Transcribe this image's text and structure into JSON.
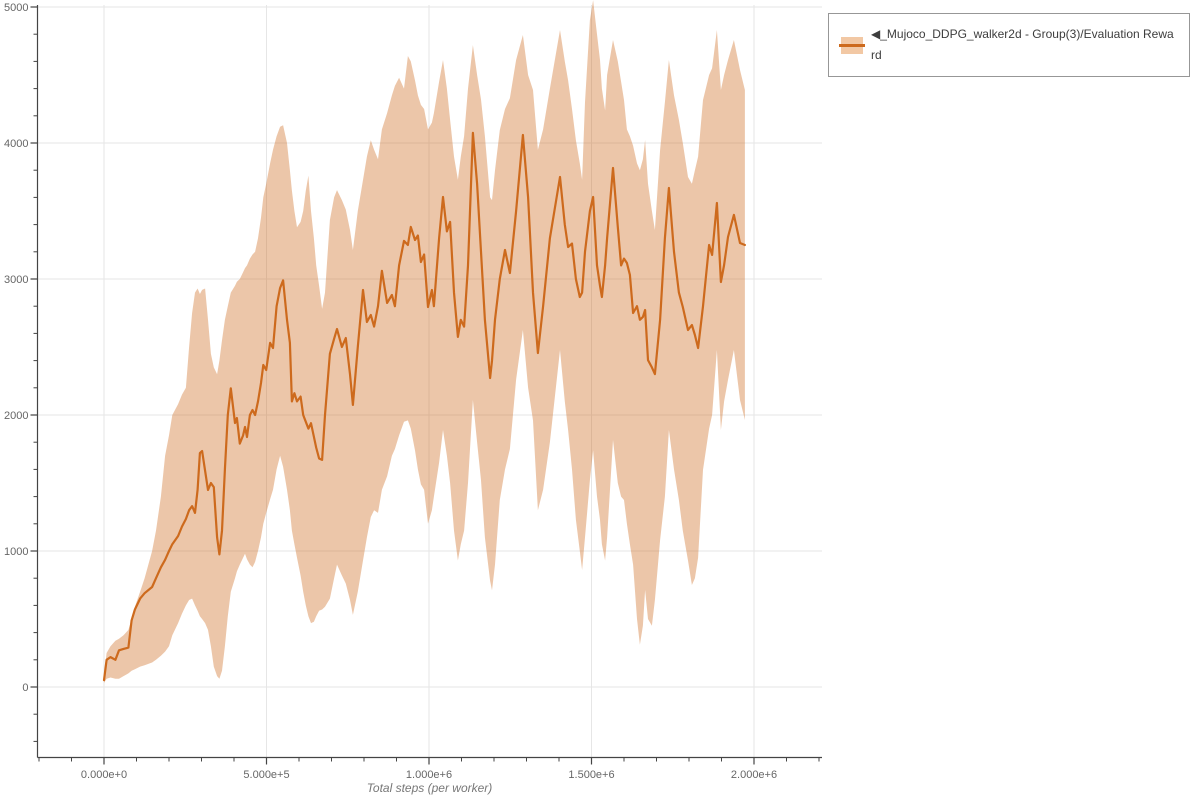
{
  "legend": {
    "label": "◀_Mujoco_DDPG_walker2d - Group(3)/Evaluation Reward"
  },
  "colors": {
    "line": "#cd6a1d",
    "band": "#cd6a1d",
    "band_opacity": 0.38,
    "band_solid": "#f2c8a4",
    "grid": "#e6e6e6",
    "axis": "#444444",
    "tick_label": "#666666",
    "axis_title": "#777777",
    "legend_border": "#979797",
    "legend_text": "#3d3d3d"
  },
  "chart_data": {
    "type": "line",
    "title": "",
    "xlabel": "Total steps (per worker)",
    "ylabel": "",
    "grid": true,
    "legend_position": "top-right-outside",
    "x_axis_range": [
      -206000,
      2209000
    ],
    "y_axis_range": [
      -515,
      5015
    ],
    "x_ticks": [
      {
        "value": 0,
        "label": "0.000e+0"
      },
      {
        "value": 500000,
        "label": "5.000e+5"
      },
      {
        "value": 1000000,
        "label": "1.000e+6"
      },
      {
        "value": 1500000,
        "label": "1.500e+6"
      },
      {
        "value": 2000000,
        "label": "2.000e+6"
      }
    ],
    "y_ticks": [
      {
        "value": 0,
        "label": "0"
      },
      {
        "value": 1000,
        "label": "1000"
      },
      {
        "value": 2000,
        "label": "2000"
      },
      {
        "value": 3000,
        "label": "3000"
      },
      {
        "value": 4000,
        "label": "4000"
      },
      {
        "value": 5000,
        "label": "5000"
      }
    ],
    "x_minor_step": 100000,
    "y_minor_step": 200,
    "series": [
      {
        "name": "_Mujoco_DDPG_walker2d - Group(3)/Evaluation Reward",
        "points_format": [
          "step",
          "mean_reward",
          "band_low",
          "band_high"
        ],
        "points": [
          [
            0,
            50,
            30,
            90
          ],
          [
            8000,
            200,
            60,
            250
          ],
          [
            20000,
            220,
            70,
            300
          ],
          [
            35000,
            200,
            60,
            340
          ],
          [
            46000,
            270,
            60,
            355
          ],
          [
            60000,
            280,
            80,
            380
          ],
          [
            75000,
            290,
            100,
            420
          ],
          [
            85000,
            490,
            120,
            500
          ],
          [
            95000,
            570,
            130,
            590
          ],
          [
            111000,
            650,
            150,
            700
          ],
          [
            125000,
            690,
            160,
            800
          ],
          [
            148000,
            735,
            180,
            1000
          ],
          [
            160000,
            800,
            200,
            1150
          ],
          [
            175000,
            880,
            230,
            1400
          ],
          [
            188000,
            935,
            260,
            1700
          ],
          [
            200000,
            1000,
            300,
            1850
          ],
          [
            210000,
            1050,
            380,
            2000
          ],
          [
            228000,
            1110,
            470,
            2080
          ],
          [
            240000,
            1180,
            540,
            2150
          ],
          [
            252000,
            1235,
            600,
            2200
          ],
          [
            262000,
            1300,
            640,
            2500
          ],
          [
            271000,
            1330,
            650,
            2750
          ],
          [
            280000,
            1280,
            600,
            2900
          ],
          [
            288000,
            1450,
            560,
            2930
          ],
          [
            295000,
            1720,
            520,
            2890
          ],
          [
            302000,
            1735,
            500,
            2920
          ],
          [
            311000,
            1590,
            470,
            2930
          ],
          [
            320000,
            1449,
            420,
            2700
          ],
          [
            329000,
            1500,
            300,
            2450
          ],
          [
            338000,
            1470,
            150,
            2350
          ],
          [
            348000,
            1100,
            80,
            2300
          ],
          [
            355000,
            975,
            60,
            2400
          ],
          [
            363000,
            1150,
            120,
            2550
          ],
          [
            372000,
            1600,
            300,
            2700
          ],
          [
            381000,
            2000,
            520,
            2800
          ],
          [
            390000,
            2196,
            700,
            2900
          ],
          [
            403000,
            1941,
            800,
            2950
          ],
          [
            409000,
            1978,
            850,
            2980
          ],
          [
            418000,
            1790,
            900,
            3000
          ],
          [
            428000,
            1850,
            950,
            3050
          ],
          [
            434000,
            1912,
            980,
            3080
          ],
          [
            440000,
            1838,
            940,
            3100
          ],
          [
            449000,
            2000,
            900,
            3150
          ],
          [
            457000,
            2037,
            880,
            3180
          ],
          [
            465000,
            2000,
            920,
            3200
          ],
          [
            474000,
            2100,
            1000,
            3300
          ],
          [
            483000,
            2235,
            1100,
            3450
          ],
          [
            490000,
            2368,
            1200,
            3600
          ],
          [
            499000,
            2331,
            1280,
            3700
          ],
          [
            511000,
            2530,
            1380,
            3850
          ],
          [
            520000,
            2493,
            1450,
            3950
          ],
          [
            531000,
            2800,
            1600,
            4050
          ],
          [
            542000,
            2934,
            1700,
            4120
          ],
          [
            551000,
            2990,
            1620,
            4130
          ],
          [
            563000,
            2700,
            1450,
            4000
          ],
          [
            572000,
            2530,
            1300,
            3800
          ],
          [
            578000,
            2100,
            1150,
            3650
          ],
          [
            586000,
            2160,
            1050,
            3500
          ],
          [
            594000,
            2100,
            950,
            3380
          ],
          [
            605000,
            2135,
            820,
            3420
          ],
          [
            613000,
            2000,
            700,
            3500
          ],
          [
            621000,
            1950,
            600,
            3650
          ],
          [
            629000,
            1900,
            520,
            3760
          ],
          [
            637000,
            1940,
            470,
            3500
          ],
          [
            646000,
            1840,
            480,
            3300
          ],
          [
            653000,
            1760,
            520,
            3100
          ],
          [
            662000,
            1680,
            560,
            2950
          ],
          [
            671000,
            1670,
            570,
            2780
          ],
          [
            680000,
            2000,
            590,
            2900
          ],
          [
            695000,
            2450,
            650,
            3434
          ],
          [
            708000,
            2560,
            800,
            3600
          ],
          [
            717000,
            2632,
            900,
            3654
          ],
          [
            732000,
            2500,
            820,
            3580
          ],
          [
            744000,
            2566,
            760,
            3510
          ],
          [
            757000,
            2300,
            640,
            3360
          ],
          [
            766000,
            2074,
            530,
            3213
          ],
          [
            781000,
            2500,
            700,
            3500
          ],
          [
            797000,
            2919,
            930,
            3728
          ],
          [
            809000,
            2684,
            1100,
            3900
          ],
          [
            821000,
            2735,
            1250,
            4020
          ],
          [
            831000,
            2650,
            1300,
            3950
          ],
          [
            843000,
            2800,
            1280,
            3880
          ],
          [
            855000,
            3060,
            1450,
            4100
          ],
          [
            871000,
            2824,
            1550,
            4220
          ],
          [
            886000,
            2882,
            1700,
            4350
          ],
          [
            895000,
            2800,
            1750,
            4420
          ],
          [
            908000,
            3100,
            1850,
            4480
          ],
          [
            923000,
            3280,
            1950,
            4400
          ],
          [
            935000,
            3250,
            1960,
            4640
          ],
          [
            944000,
            3383,
            1900,
            4600
          ],
          [
            957000,
            3287,
            1740,
            4460
          ],
          [
            966000,
            3320,
            1600,
            4350
          ],
          [
            975000,
            3125,
            1490,
            4280
          ],
          [
            985000,
            3180,
            1450,
            4250
          ],
          [
            997000,
            2794,
            1200,
            4100
          ],
          [
            1009000,
            2919,
            1300,
            4150
          ],
          [
            1015000,
            2800,
            1400,
            4220
          ],
          [
            1031000,
            3300,
            1650,
            4450
          ],
          [
            1043000,
            3603,
            1890,
            4610
          ],
          [
            1055000,
            3350,
            1700,
            4400
          ],
          [
            1065000,
            3420,
            1500,
            4170
          ],
          [
            1077000,
            2900,
            1150,
            3900
          ],
          [
            1089000,
            2574,
            930,
            3730
          ],
          [
            1098000,
            2700,
            1050,
            3900
          ],
          [
            1108000,
            2650,
            1150,
            4050
          ],
          [
            1120000,
            3100,
            1500,
            4400
          ],
          [
            1135000,
            4074,
            2110,
            4720
          ],
          [
            1148000,
            3700,
            1800,
            4500
          ],
          [
            1160000,
            3200,
            1520,
            4320
          ],
          [
            1172000,
            2700,
            1100,
            4050
          ],
          [
            1188000,
            2272,
            780,
            3600
          ],
          [
            1194000,
            2400,
            710,
            3580
          ],
          [
            1203000,
            2700,
            900,
            3800
          ],
          [
            1218000,
            3000,
            1375,
            4095
          ],
          [
            1234000,
            3213,
            1600,
            4250
          ],
          [
            1249000,
            3044,
            1750,
            4330
          ],
          [
            1268000,
            3500,
            2260,
            4610
          ],
          [
            1289000,
            4059,
            2625,
            4794
          ],
          [
            1305000,
            3600,
            2200,
            4500
          ],
          [
            1320000,
            2900,
            1960,
            4390
          ],
          [
            1335000,
            2456,
            1300,
            3950
          ],
          [
            1351000,
            2800,
            1450,
            4100
          ],
          [
            1372000,
            3300,
            1800,
            4400
          ],
          [
            1403000,
            3750,
            2478,
            4831
          ],
          [
            1418000,
            3400,
            2100,
            4600
          ],
          [
            1428000,
            3235,
            1890,
            4460
          ],
          [
            1440000,
            3260,
            1600,
            4250
          ],
          [
            1452000,
            3000,
            1230,
            4020
          ],
          [
            1464000,
            2868,
            1000,
            3850
          ],
          [
            1471000,
            2900,
            860,
            3730
          ],
          [
            1480000,
            3200,
            1100,
            4300
          ],
          [
            1495000,
            3500,
            1520,
            4904
          ],
          [
            1505000,
            3603,
            1740,
            5050
          ],
          [
            1517000,
            3100,
            1400,
            4800
          ],
          [
            1526000,
            2950,
            1230,
            4610
          ],
          [
            1532000,
            2868,
            1050,
            4400
          ],
          [
            1542000,
            3100,
            930,
            4240
          ],
          [
            1548000,
            3300,
            1100,
            4500
          ],
          [
            1566000,
            3816,
            1816,
            4757
          ],
          [
            1581000,
            3383,
            1500,
            4600
          ],
          [
            1591000,
            3100,
            1400,
            4450
          ],
          [
            1600000,
            3150,
            1375,
            4316
          ],
          [
            1609000,
            3118,
            1200,
            4100
          ],
          [
            1618000,
            3030,
            1050,
            4050
          ],
          [
            1628000,
            2750,
            900,
            3980
          ],
          [
            1640000,
            2800,
            500,
            3850
          ],
          [
            1649000,
            2700,
            310,
            3800
          ],
          [
            1658000,
            2721,
            450,
            3880
          ],
          [
            1665000,
            2772,
            713,
            4022
          ],
          [
            1674000,
            2404,
            500,
            3700
          ],
          [
            1686000,
            2350,
            450,
            3500
          ],
          [
            1695000,
            2301,
            640,
            3360
          ],
          [
            1711000,
            2700,
            1081,
            3949
          ],
          [
            1726000,
            3300,
            1400,
            4300
          ],
          [
            1738000,
            3669,
            1890,
            4610
          ],
          [
            1754000,
            3200,
            1600,
            4350
          ],
          [
            1769000,
            2900,
            1375,
            4170
          ],
          [
            1781000,
            2794,
            1150,
            4000
          ],
          [
            1797000,
            2625,
            930,
            3750
          ],
          [
            1809000,
            2662,
            750,
            3700
          ],
          [
            1818000,
            2588,
            800,
            3800
          ],
          [
            1828000,
            2493,
            950,
            3900
          ],
          [
            1843000,
            2800,
            1596,
            4316
          ],
          [
            1862000,
            3250,
            1900,
            4500
          ],
          [
            1871000,
            3177,
            2000,
            4550
          ],
          [
            1886000,
            3559,
            2478,
            4831
          ],
          [
            1898000,
            2978,
            1890,
            4390
          ],
          [
            1908000,
            3103,
            2100,
            4500
          ],
          [
            1920000,
            3309,
            2258,
            4610
          ],
          [
            1938000,
            3471,
            2478,
            4757
          ],
          [
            1957000,
            3265,
            2110,
            4537
          ],
          [
            1972000,
            3250,
            1963,
            4390
          ]
        ]
      }
    ]
  }
}
